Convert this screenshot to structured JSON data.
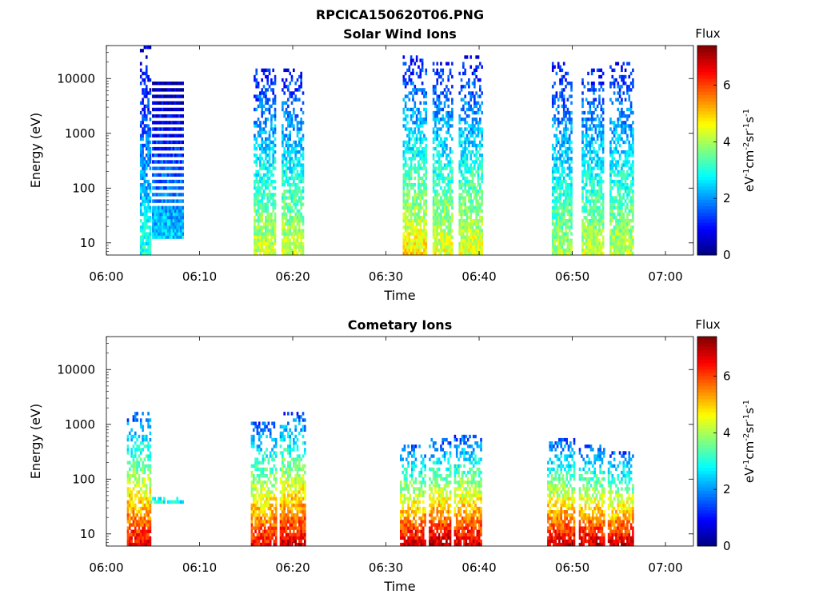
{
  "figure": {
    "title": "RPCICA150620T06.PNG"
  },
  "chart_data": [
    {
      "type": "heatmap",
      "title": "Solar Wind Ions",
      "xlabel": "Time",
      "ylabel": "Energy (eV)",
      "x_ticks": [
        "06:00",
        "06:10",
        "06:20",
        "06:30",
        "06:40",
        "06:50",
        "07:00"
      ],
      "xlim_minutes": [
        0,
        63
      ],
      "y_scale": "log",
      "y_ticks": [
        10,
        100,
        1000,
        10000
      ],
      "y_tick_labels": [
        "10",
        "100",
        "1000",
        "10000"
      ],
      "ylim": [
        6,
        40000
      ],
      "colorbar": {
        "label": "Flux",
        "unit_label": "eV-1cm-2sr-1s-1",
        "ticks": [
          0,
          2,
          4,
          6
        ],
        "tick_labels": [
          "0",
          "2",
          "4",
          "6"
        ],
        "range": [
          0,
          7.4
        ],
        "colormap": "jet"
      },
      "grid": false,
      "bursts": [
        {
          "t_start": 3.6,
          "t_end": 4.7,
          "e_low": 6,
          "e_high": 35000,
          "flux_low_energy": 3.0,
          "flux_high_energy": 0.6
        },
        {
          "t_start": 4.9,
          "t_end": 8.3,
          "e_low": 12,
          "e_high": 9000,
          "flux_low_energy": 2.5,
          "flux_high_energy": 0.2,
          "bands": true
        },
        {
          "t_start": 15.8,
          "t_end": 18.2,
          "e_low": 6,
          "e_high": 15000,
          "flux_low_energy": 4.3,
          "flux_high_energy": 1.0
        },
        {
          "t_start": 18.8,
          "t_end": 21.2,
          "e_low": 6,
          "e_high": 15000,
          "flux_low_energy": 4.3,
          "flux_high_energy": 1.0
        },
        {
          "t_start": 31.8,
          "t_end": 34.3,
          "e_low": 6,
          "e_high": 25000,
          "flux_low_energy": 4.8,
          "flux_high_energy": 1.0
        },
        {
          "t_start": 35.0,
          "t_end": 37.2,
          "e_low": 6,
          "e_high": 20000,
          "flux_low_energy": 4.5,
          "flux_high_energy": 1.0
        },
        {
          "t_start": 37.8,
          "t_end": 40.3,
          "e_low": 6,
          "e_high": 25000,
          "flux_low_energy": 4.5,
          "flux_high_energy": 1.0
        },
        {
          "t_start": 47.8,
          "t_end": 50.0,
          "e_low": 6,
          "e_high": 18000,
          "flux_low_energy": 4.0,
          "flux_high_energy": 1.0
        },
        {
          "t_start": 51.0,
          "t_end": 53.4,
          "e_low": 6,
          "e_high": 15000,
          "flux_low_energy": 4.2,
          "flux_high_energy": 1.0
        },
        {
          "t_start": 54.0,
          "t_end": 56.6,
          "e_low": 6,
          "e_high": 18000,
          "flux_low_energy": 4.2,
          "flux_high_energy": 1.0
        }
      ]
    },
    {
      "type": "heatmap",
      "title": "Cometary Ions",
      "xlabel": "Time",
      "ylabel": "Energy (eV)",
      "x_ticks": [
        "06:00",
        "06:10",
        "06:20",
        "06:30",
        "06:40",
        "06:50",
        "07:00"
      ],
      "xlim_minutes": [
        0,
        63
      ],
      "y_scale": "log",
      "y_ticks": [
        10,
        100,
        1000,
        10000
      ],
      "y_tick_labels": [
        "10",
        "100",
        "1000",
        "10000"
      ],
      "ylim": [
        6,
        40000
      ],
      "colorbar": {
        "label": "Flux",
        "unit_label": "eV-1cm-2sr-1s-1",
        "ticks": [
          0,
          2,
          4,
          6
        ],
        "tick_labels": [
          "0",
          "2",
          "4",
          "6"
        ],
        "range": [
          0,
          7.4
        ],
        "colormap": "jet"
      },
      "grid": false,
      "bursts": [
        {
          "t_start": 2.2,
          "t_end": 4.7,
          "e_low": 6,
          "e_high": 1500,
          "flux_low_energy": 6.6,
          "flux_high_energy": 1.5
        },
        {
          "t_start": 4.7,
          "t_end": 8.3,
          "e_low": 36,
          "e_high": 44,
          "flux_low_energy": 2.8,
          "flux_high_energy": 2.8
        },
        {
          "t_start": 15.5,
          "t_end": 18.3,
          "e_low": 6,
          "e_high": 1000,
          "flux_low_energy": 6.5,
          "flux_high_energy": 1.5
        },
        {
          "t_start": 18.6,
          "t_end": 21.3,
          "e_low": 6,
          "e_high": 1500,
          "flux_low_energy": 6.8,
          "flux_high_energy": 1.5
        },
        {
          "t_start": 31.5,
          "t_end": 34.2,
          "e_low": 6,
          "e_high": 400,
          "flux_low_energy": 6.8,
          "flux_high_energy": 1.5
        },
        {
          "t_start": 34.6,
          "t_end": 37.0,
          "e_low": 6,
          "e_high": 500,
          "flux_low_energy": 7.0,
          "flux_high_energy": 1.5
        },
        {
          "t_start": 37.3,
          "t_end": 40.3,
          "e_low": 6,
          "e_high": 600,
          "flux_low_energy": 6.8,
          "flux_high_energy": 1.5
        },
        {
          "t_start": 47.3,
          "t_end": 50.2,
          "e_low": 6,
          "e_high": 500,
          "flux_low_energy": 6.8,
          "flux_high_energy": 1.5
        },
        {
          "t_start": 50.7,
          "t_end": 53.4,
          "e_low": 6,
          "e_high": 400,
          "flux_low_energy": 6.8,
          "flux_high_energy": 1.5
        },
        {
          "t_start": 53.8,
          "t_end": 56.6,
          "e_low": 6,
          "e_high": 300,
          "flux_low_energy": 6.8,
          "flux_high_energy": 1.5
        }
      ]
    }
  ]
}
